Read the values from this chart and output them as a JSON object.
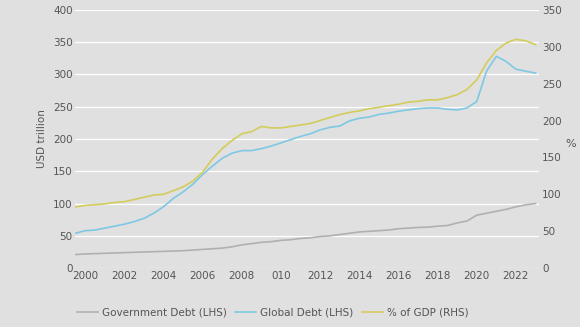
{
  "years": [
    1999.5,
    2000,
    2000.5,
    2001,
    2001.5,
    2002,
    2002.5,
    2003,
    2003.5,
    2004,
    2004.5,
    2005,
    2005.5,
    2006,
    2006.5,
    2007,
    2007.5,
    2008,
    2008.5,
    2009,
    2009.5,
    2010,
    2010.5,
    2011,
    2011.5,
    2012,
    2012.5,
    2013,
    2013.5,
    2014,
    2014.5,
    2015,
    2015.5,
    2016,
    2016.5,
    2017,
    2017.5,
    2018,
    2018.5,
    2019,
    2019.5,
    2020,
    2020.5,
    2021,
    2021.5,
    2022,
    2022.5,
    2023
  ],
  "gov_debt": [
    21,
    22,
    22.5,
    23,
    23.5,
    24,
    24.5,
    25,
    25.5,
    26,
    26.5,
    27,
    28,
    29,
    30,
    31,
    33,
    36,
    38,
    40,
    41,
    43,
    44,
    46,
    47,
    49,
    50,
    52,
    54,
    56,
    57,
    58,
    59,
    61,
    62,
    63,
    63.5,
    65,
    66,
    70,
    73,
    82,
    85,
    88,
    91,
    95,
    98,
    100
  ],
  "global_debt": [
    54,
    58,
    59,
    62,
    65,
    68,
    72,
    77,
    85,
    95,
    108,
    118,
    130,
    145,
    158,
    170,
    178,
    182,
    182,
    185,
    189,
    194,
    199,
    204,
    208,
    214,
    218,
    220,
    228,
    232,
    234,
    238,
    240,
    243,
    245,
    247,
    248,
    248,
    246,
    245,
    248,
    258,
    305,
    328,
    320,
    308,
    305,
    302
  ],
  "pct_gdp": [
    83,
    85,
    86,
    87,
    89,
    90,
    93,
    96,
    99,
    100,
    105,
    110,
    118,
    130,
    148,
    162,
    173,
    182,
    185,
    192,
    190,
    190,
    192,
    194,
    196,
    200,
    204,
    208,
    211,
    213,
    216,
    218,
    220,
    222,
    225,
    226,
    228,
    228,
    231,
    235,
    242,
    255,
    278,
    295,
    305,
    310,
    308,
    303
  ],
  "gov_color": "#b0b0b0",
  "global_color": "#7ec8e3",
  "gdp_color": "#d4cc5a",
  "lhs_ylabel": "USD trillion",
  "rhs_ylabel": "%",
  "lhs_ylim": [
    0,
    400
  ],
  "rhs_ylim": [
    0,
    350
  ],
  "lhs_yticks": [
    0,
    50,
    100,
    150,
    200,
    250,
    300,
    350,
    400
  ],
  "rhs_yticks": [
    0,
    50,
    100,
    150,
    200,
    250,
    300,
    350
  ],
  "xtick_labels": [
    "2000",
    "2002",
    "2004",
    "2006",
    "2008",
    "010",
    "2012",
    "2014",
    "2016",
    "2018",
    "2020",
    "2022"
  ],
  "xtick_positions": [
    2000,
    2002,
    2004,
    2006,
    2008,
    2010,
    2012,
    2014,
    2016,
    2018,
    2020,
    2022
  ],
  "legend_labels": [
    "Government Debt (LHS)",
    "Global Debt (LHS)",
    "% of GDP (RHS)"
  ],
  "bg_color": "#e0e0e0",
  "grid_color": "#ffffff",
  "grid_levels": [
    0,
    50,
    100,
    150,
    200,
    250,
    300,
    350,
    400
  ],
  "line_width": 1.2
}
